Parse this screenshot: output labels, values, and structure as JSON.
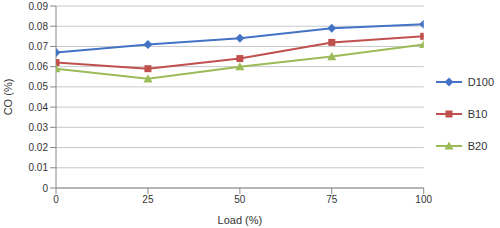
{
  "chart_data": {
    "type": "line",
    "x_label": "Load (%)",
    "y_label": "CO (%)",
    "x": [
      0,
      25,
      50,
      75,
      100
    ],
    "xlim": [
      0,
      100
    ],
    "xticks": [
      0,
      25,
      50,
      75,
      100
    ],
    "ylim": [
      0,
      0.09
    ],
    "yticks": [
      0,
      0.01,
      0.02,
      0.03,
      0.04,
      0.05,
      0.06,
      0.07,
      0.08,
      0.09
    ],
    "grid": true,
    "legend": "right",
    "series": [
      {
        "name": "D100",
        "color": "#4472c4",
        "marker": "diamond",
        "values": [
          0.067,
          0.071,
          0.074,
          0.079,
          0.081
        ]
      },
      {
        "name": "B10",
        "color": "#c0504d",
        "marker": "square",
        "values": [
          0.062,
          0.059,
          0.064,
          0.072,
          0.075
        ]
      },
      {
        "name": "B20",
        "color": "#9bbb59",
        "marker": "triangle",
        "values": [
          0.059,
          0.054,
          0.06,
          0.065,
          0.071
        ]
      }
    ]
  }
}
